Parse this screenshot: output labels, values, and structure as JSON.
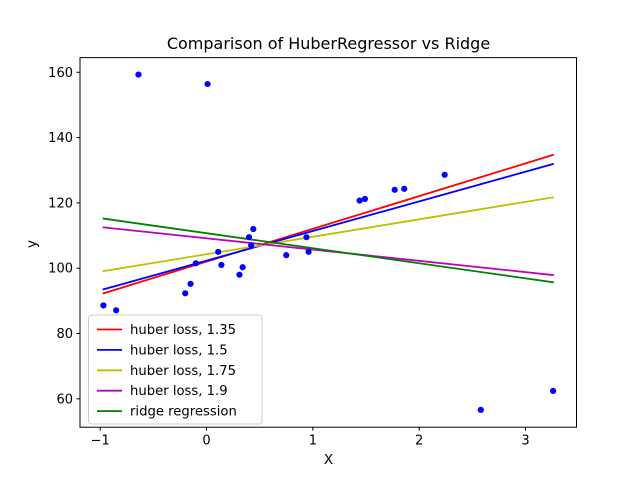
{
  "chart_data": {
    "type": "scatter",
    "title": "Comparison of HuberRegressor vs Ridge",
    "xlabel": "X",
    "ylabel": "y",
    "xlim": [
      -1.19,
      3.48
    ],
    "ylim": [
      51.3,
      164.5
    ],
    "grid": false,
    "xtick_values": [
      -1,
      0,
      1,
      2,
      3
    ],
    "xtick_labels": [
      "−1",
      "0",
      "1",
      "2",
      "3"
    ],
    "ytick_values": [
      60,
      80,
      100,
      120,
      140,
      160
    ],
    "ytick_labels": [
      "60",
      "80",
      "100",
      "120",
      "140",
      "160"
    ],
    "scatter": {
      "color": "#0000ff",
      "marker_radius": 3.1,
      "points": [
        [
          -0.97,
          88.6
        ],
        [
          -0.85,
          87.1
        ],
        [
          -0.64,
          159.3
        ],
        [
          -0.2,
          92.3
        ],
        [
          -0.15,
          95.2
        ],
        [
          -0.1,
          101.5
        ],
        [
          0.01,
          156.4
        ],
        [
          0.11,
          105.0
        ],
        [
          0.14,
          101.0
        ],
        [
          0.31,
          98.0
        ],
        [
          0.34,
          100.3
        ],
        [
          0.4,
          109.5
        ],
        [
          0.42,
          107.0
        ],
        [
          0.44,
          112.0
        ],
        [
          0.75,
          104.0
        ],
        [
          0.94,
          109.5
        ],
        [
          0.96,
          105.0
        ],
        [
          1.44,
          120.7
        ],
        [
          1.49,
          121.2
        ],
        [
          1.77,
          124.0
        ],
        [
          1.86,
          124.3
        ],
        [
          2.24,
          128.6
        ],
        [
          2.58,
          56.6
        ],
        [
          3.26,
          62.4
        ]
      ]
    },
    "lines": [
      {
        "label": "huber loss, 1.35",
        "color": "#ff0000",
        "x": [
          -0.97,
          3.26
        ],
        "y": [
          92.3,
          134.7
        ]
      },
      {
        "label": "huber loss, 1.5",
        "color": "#0000ff",
        "x": [
          -0.97,
          3.26
        ],
        "y": [
          93.5,
          131.9
        ]
      },
      {
        "label": "huber loss, 1.75",
        "color": "#bfbf00",
        "x": [
          -0.97,
          3.26
        ],
        "y": [
          99.1,
          121.7
        ]
      },
      {
        "label": "huber loss, 1.9",
        "color": "#bf00bf",
        "x": [
          -0.97,
          3.26
        ],
        "y": [
          112.5,
          97.9
        ]
      },
      {
        "label": "ridge regression",
        "color": "#008000",
        "x": [
          -0.97,
          3.26
        ],
        "y": [
          115.2,
          95.7
        ]
      }
    ],
    "legend": {
      "position": "lower left",
      "entries": [
        "huber loss, 1.35",
        "huber loss, 1.5",
        "huber loss, 1.75",
        "huber loss, 1.9",
        "ridge regression"
      ]
    }
  }
}
